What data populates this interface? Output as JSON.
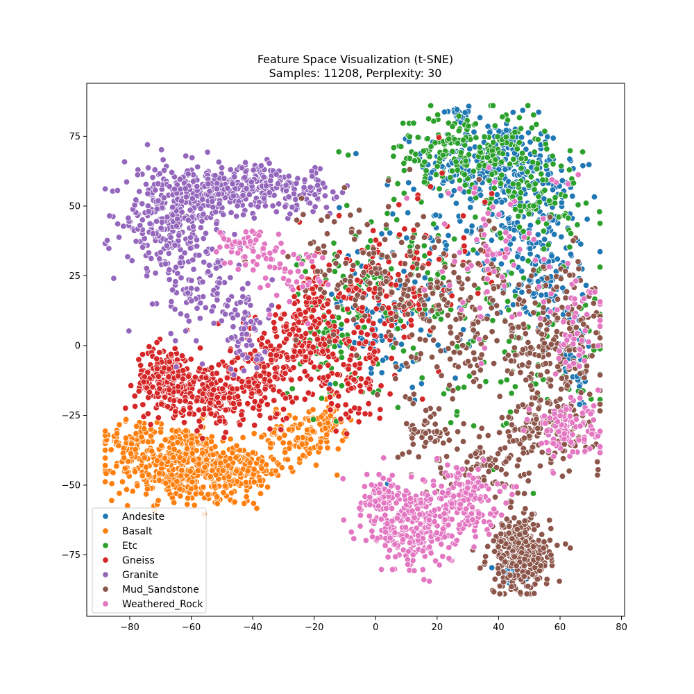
{
  "chart_data": {
    "type": "scatter",
    "title": "Feature Space Visualization (t-SNE)",
    "subtitle": "Samples: 11208, Perplexity: 30",
    "xlabel": "",
    "ylabel": "",
    "xlim": [
      -94,
      81
    ],
    "ylim": [
      -97,
      94
    ],
    "x_ticks": [
      -80,
      -60,
      -40,
      -20,
      0,
      20,
      40,
      60,
      80
    ],
    "y_ticks": [
      -75,
      -50,
      -25,
      0,
      25,
      50,
      75
    ],
    "x_tick_labels": [
      "−80",
      "−60",
      "−40",
      "−20",
      "0",
      "20",
      "40",
      "60",
      "80"
    ],
    "y_tick_labels": [
      "−75",
      "−50",
      "−25",
      "0",
      "25",
      "50",
      "75"
    ],
    "grid": false,
    "legend_position": "lower-left",
    "series": [
      {
        "name": "Andesite",
        "color": "#1f77b4",
        "regions": [
          {
            "cx": 27,
            "cy": 83,
            "sx": 2.5,
            "sy": 1.8,
            "n": 25
          },
          {
            "cx": 38,
            "cy": 65,
            "sx": 11,
            "sy": 8,
            "n": 260
          },
          {
            "cx": 50,
            "cy": 45,
            "sx": 9,
            "sy": 10,
            "n": 160
          },
          {
            "cx": 55,
            "cy": 20,
            "sx": 7,
            "sy": 8,
            "n": 80
          },
          {
            "cx": 10,
            "cy": 20,
            "sx": 12,
            "sy": 18,
            "n": 110
          },
          {
            "cx": 0,
            "cy": 5,
            "sx": 6,
            "sy": 6,
            "n": 40
          },
          {
            "cx": 45,
            "cy": -83,
            "sx": 3,
            "sy": 3,
            "n": 30
          },
          {
            "cx": 65,
            "cy": -5,
            "sx": 4,
            "sy": 10,
            "n": 40
          }
        ]
      },
      {
        "name": "Basalt",
        "color": "#ff7f0e",
        "regions": [
          {
            "cx": -65,
            "cy": -42,
            "sx": 10,
            "sy": 7,
            "n": 420
          },
          {
            "cx": -45,
            "cy": -45,
            "sx": 8,
            "sy": 5,
            "n": 180
          },
          {
            "cx": -82,
            "cy": -34,
            "sx": 4,
            "sy": 3,
            "n": 40
          },
          {
            "cx": -25,
            "cy": -32,
            "sx": 6,
            "sy": 5,
            "n": 90
          },
          {
            "cx": -15,
            "cy": -28,
            "sx": 3,
            "sy": 4,
            "n": 40
          }
        ]
      },
      {
        "name": "Etc",
        "color": "#2ca02c",
        "regions": [
          {
            "cx": 30,
            "cy": 70,
            "sx": 13,
            "sy": 7,
            "n": 200
          },
          {
            "cx": 50,
            "cy": 55,
            "sx": 9,
            "sy": 8,
            "n": 90
          },
          {
            "cx": 5,
            "cy": 20,
            "sx": 15,
            "sy": 18,
            "n": 140
          },
          {
            "cx": 50,
            "cy": 5,
            "sx": 15,
            "sy": 20,
            "n": 90
          },
          {
            "cx": -15,
            "cy": 0,
            "sx": 8,
            "sy": 10,
            "n": 50
          }
        ]
      },
      {
        "name": "Gneiss",
        "color": "#d62728",
        "regions": [
          {
            "cx": -68,
            "cy": -12,
            "sx": 5,
            "sy": 6,
            "n": 220
          },
          {
            "cx": -52,
            "cy": -18,
            "sx": 7,
            "sy": 6,
            "n": 180
          },
          {
            "cx": -35,
            "cy": -8,
            "sx": 8,
            "sy": 9,
            "n": 180
          },
          {
            "cx": -20,
            "cy": 8,
            "sx": 6,
            "sy": 10,
            "n": 130
          },
          {
            "cx": -8,
            "cy": -12,
            "sx": 6,
            "sy": 7,
            "n": 90
          },
          {
            "cx": 2,
            "cy": 15,
            "sx": 8,
            "sy": 10,
            "n": 100
          },
          {
            "cx": 15,
            "cy": 30,
            "sx": 15,
            "sy": 15,
            "n": 60
          }
        ]
      },
      {
        "name": "Granite",
        "color": "#9467bd",
        "regions": [
          {
            "cx": -68,
            "cy": 45,
            "sx": 7,
            "sy": 9,
            "n": 260
          },
          {
            "cx": -52,
            "cy": 56,
            "sx": 9,
            "sy": 5,
            "n": 200
          },
          {
            "cx": -35,
            "cy": 57,
            "sx": 8,
            "sy": 4,
            "n": 110
          },
          {
            "cx": -55,
            "cy": 20,
            "sx": 7,
            "sy": 10,
            "n": 110
          },
          {
            "cx": -42,
            "cy": 3,
            "sx": 4,
            "sy": 7,
            "n": 50
          },
          {
            "cx": -20,
            "cy": 55,
            "sx": 6,
            "sy": 4,
            "n": 40
          }
        ]
      },
      {
        "name": "Mud_Sandstone",
        "color": "#8c564b",
        "regions": [
          {
            "cx": 47,
            "cy": -75,
            "sx": 5,
            "sy": 7,
            "n": 300
          },
          {
            "cx": 58,
            "cy": 0,
            "sx": 9,
            "sy": 15,
            "n": 220
          },
          {
            "cx": 55,
            "cy": -30,
            "sx": 9,
            "sy": 6,
            "n": 120
          },
          {
            "cx": 25,
            "cy": 10,
            "sx": 12,
            "sy": 15,
            "n": 180
          },
          {
            "cx": -5,
            "cy": 30,
            "sx": 12,
            "sy": 12,
            "n": 100
          },
          {
            "cx": 35,
            "cy": -45,
            "sx": 8,
            "sy": 6,
            "n": 80
          },
          {
            "cx": 17,
            "cy": -30,
            "sx": 4,
            "sy": 5,
            "n": 50
          }
        ]
      },
      {
        "name": "Weathered_Rock",
        "color": "#e377c2",
        "regions": [
          {
            "cx": 12,
            "cy": -65,
            "sx": 7,
            "sy": 8,
            "n": 280
          },
          {
            "cx": 28,
            "cy": -55,
            "sx": 6,
            "sy": 6,
            "n": 150
          },
          {
            "cx": 2,
            "cy": -52,
            "sx": 3,
            "sy": 4,
            "n": 50
          },
          {
            "cx": 62,
            "cy": -30,
            "sx": 6,
            "sy": 5,
            "n": 100
          },
          {
            "cx": -42,
            "cy": 35,
            "sx": 6,
            "sy": 4,
            "n": 60
          },
          {
            "cx": -28,
            "cy": 25,
            "sx": 6,
            "sy": 5,
            "n": 40
          },
          {
            "cx": 40,
            "cy": 35,
            "sx": 12,
            "sy": 15,
            "n": 70
          },
          {
            "cx": 65,
            "cy": 5,
            "sx": 5,
            "sy": 12,
            "n": 50
          }
        ]
      }
    ]
  }
}
